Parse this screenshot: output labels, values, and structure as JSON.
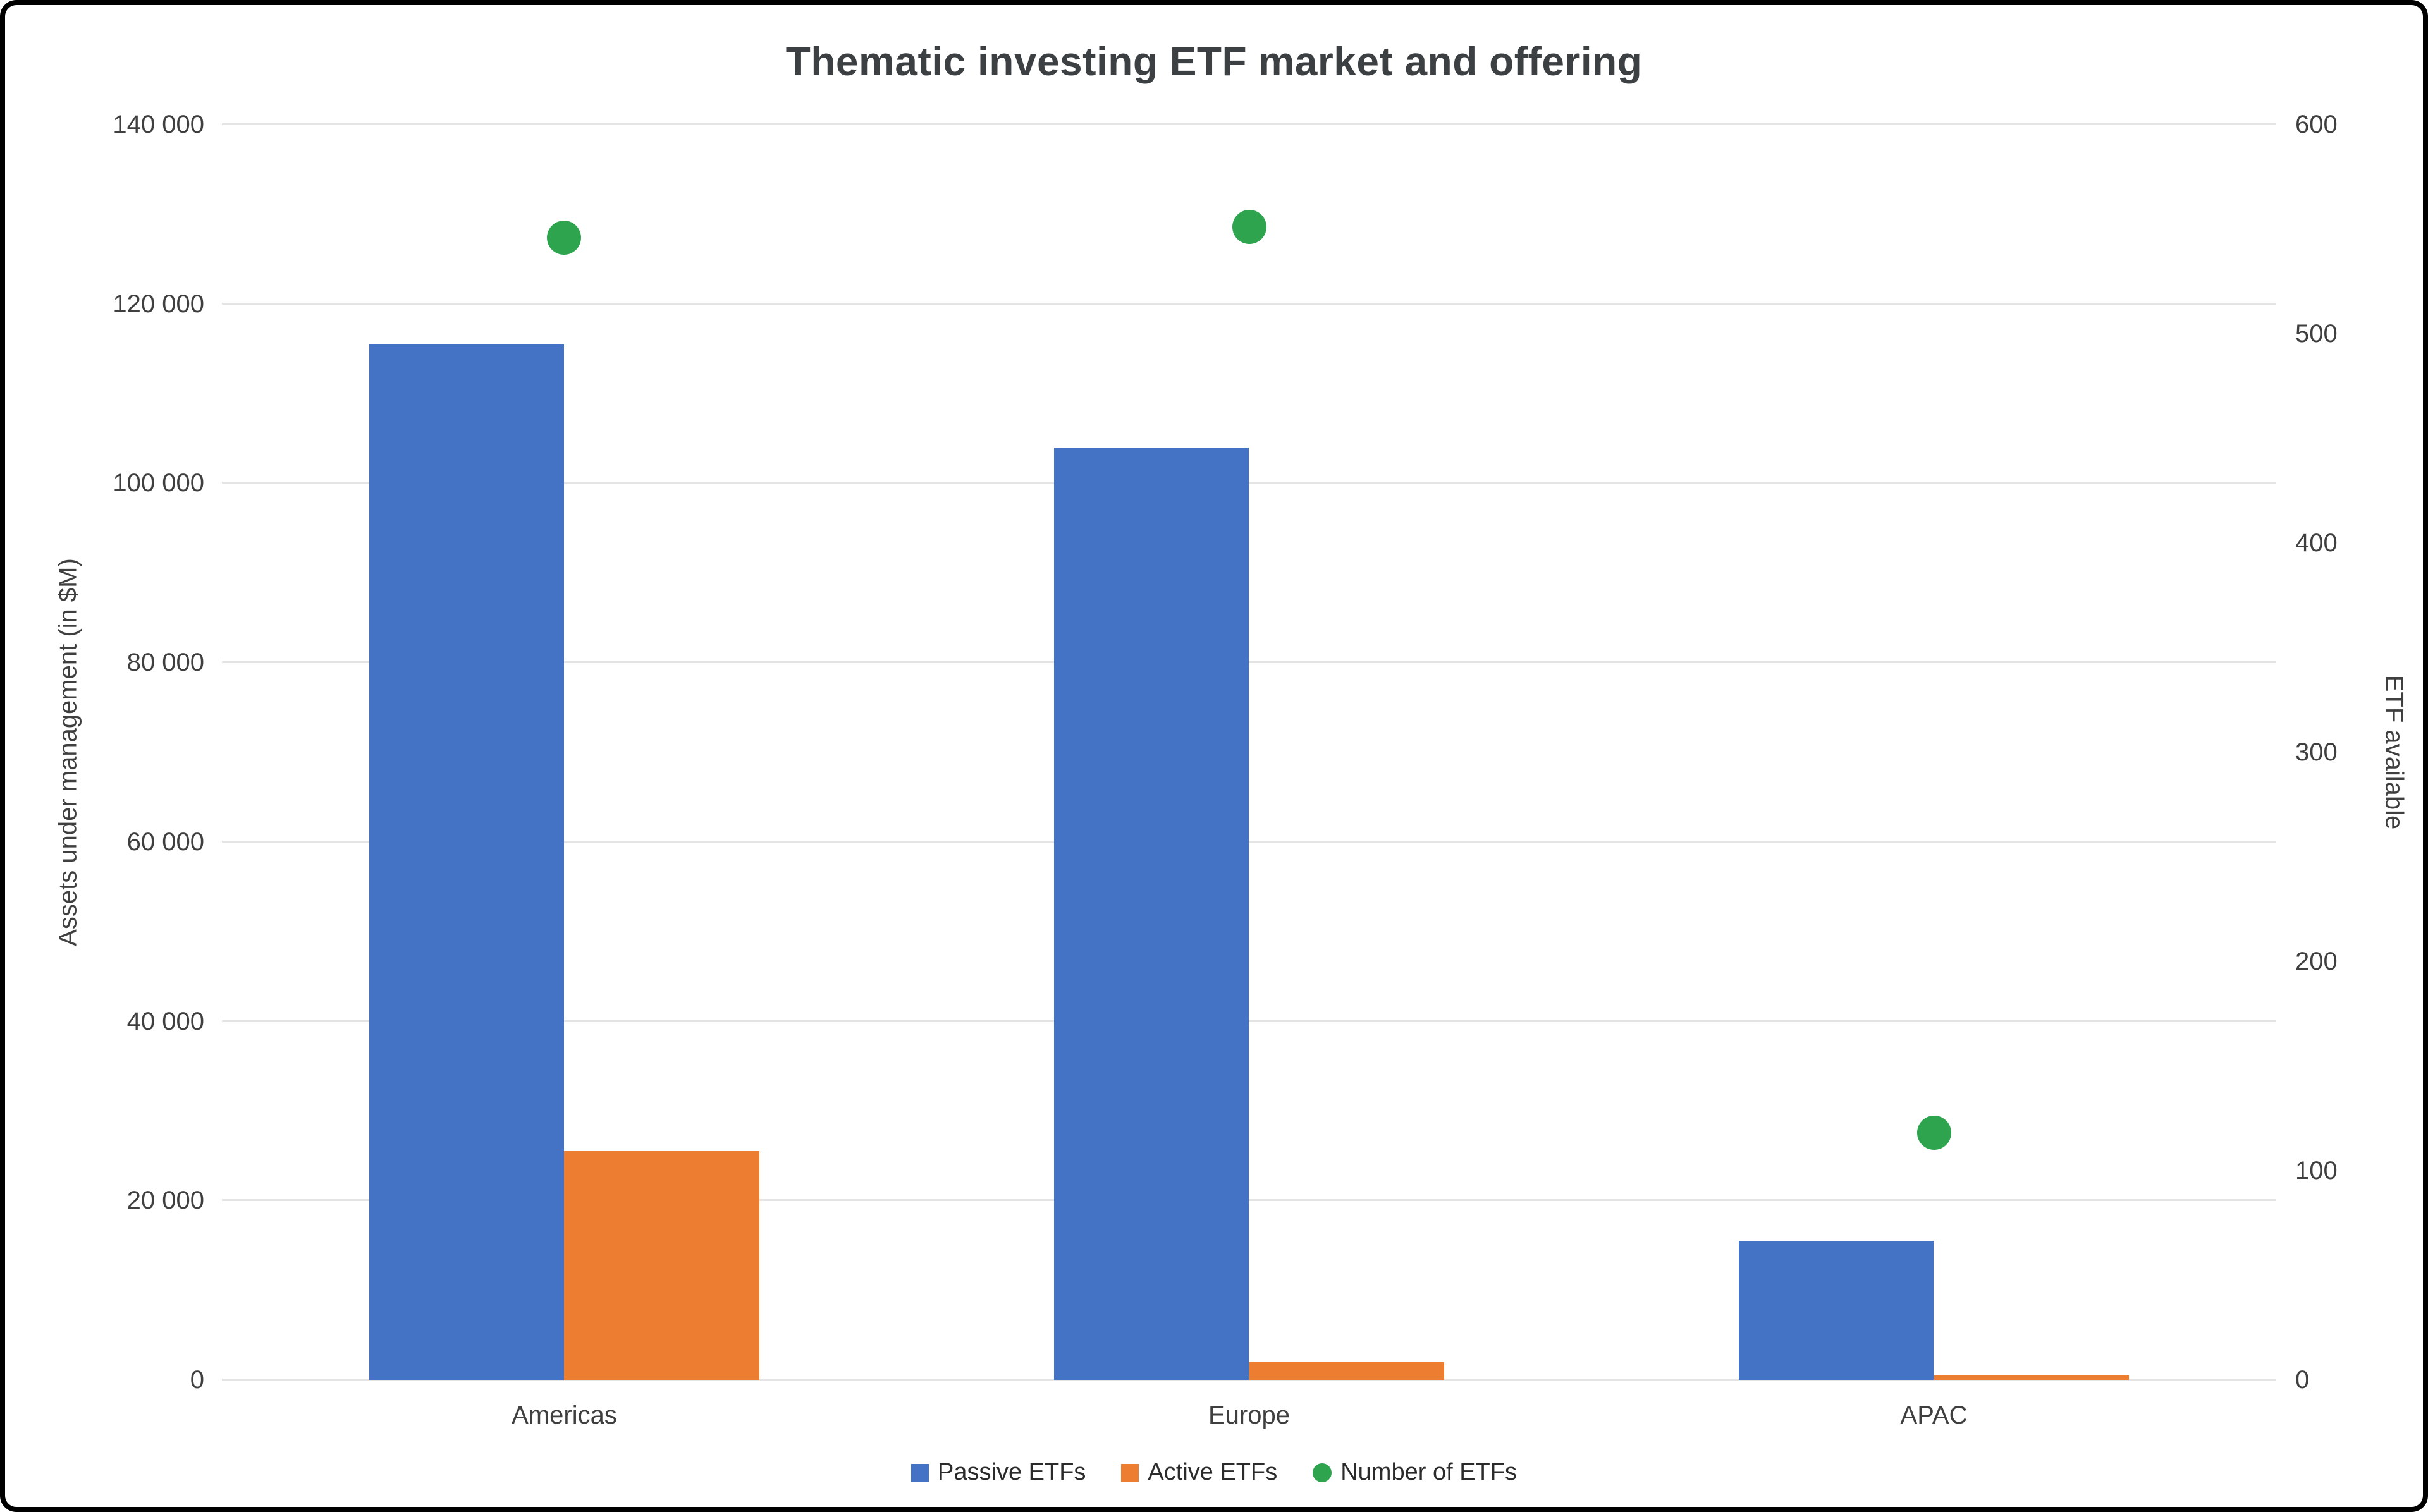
{
  "chart_data": {
    "type": "combo-bar-scatter",
    "title": "Thematic investing ETF market and offering",
    "categories": [
      "Americas",
      "Europe",
      "APAC"
    ],
    "series": [
      {
        "name": "Passive ETFs",
        "render": "bar",
        "axis": "left",
        "color": "#4472c4",
        "values": [
          115500,
          104000,
          15500
        ]
      },
      {
        "name": "Active ETFs",
        "render": "bar",
        "axis": "left",
        "color": "#ed7d31",
        "values": [
          25500,
          2000,
          500
        ]
      },
      {
        "name": "Number of ETFs",
        "render": "scatter",
        "axis": "right",
        "color": "#2ea44f",
        "values": [
          546,
          551,
          118
        ]
      }
    ],
    "left_axis": {
      "label": "Assets under management (in $M)",
      "min": 0,
      "max": 140000,
      "step": 20000,
      "tick_labels": [
        "0",
        "20 000",
        "40 000",
        "60 000",
        "80 000",
        "100 000",
        "120 000",
        "140 000"
      ]
    },
    "right_axis": {
      "label": "ETF available",
      "min": 0,
      "max": 600,
      "step": 100,
      "tick_labels": [
        "0",
        "100",
        "200",
        "300",
        "400",
        "500",
        "600"
      ]
    },
    "grid": true,
    "legend_position": "bottom",
    "colors": {
      "background": "#ffffff",
      "gridline": "#e4e4e4",
      "title_text": "#3c4043",
      "axis_text": "#3f3f3f"
    }
  }
}
